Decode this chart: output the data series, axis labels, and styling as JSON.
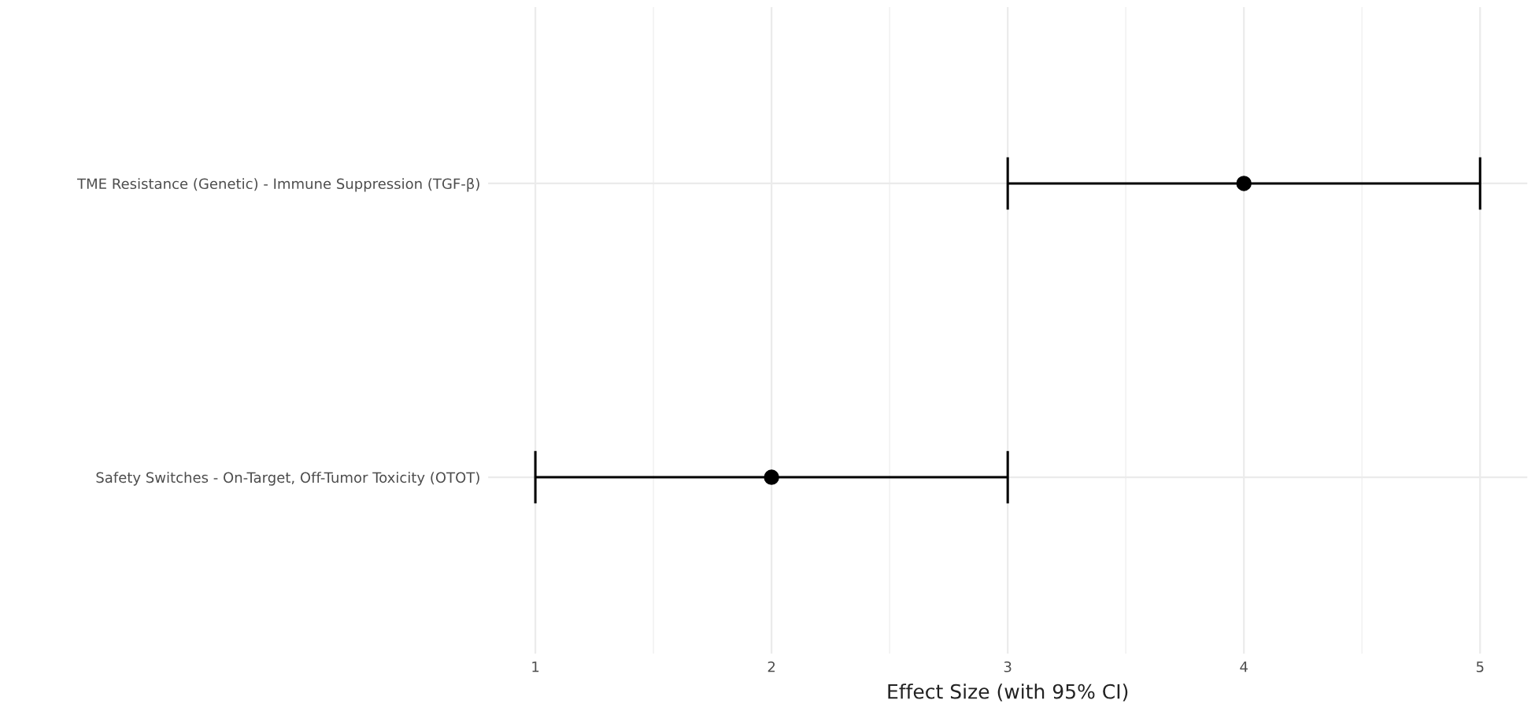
{
  "chart_data": {
    "type": "scatter",
    "orientation": "horizontal",
    "categories": [
      "TME Resistance (Genetic) - Immune Suppression (TGF-β)",
      "Safety Switches - On-Target, Off-Tumor Toxicity (OTOT)"
    ],
    "values": [
      4,
      2
    ],
    "errors": [
      [
        3,
        5
      ],
      [
        1,
        3
      ]
    ],
    "color": "#000000",
    "marker": "circle",
    "xlabel": "Effect Size (with 95% CI)",
    "xlim": [
      0.8,
      5.2
    ],
    "xticks": [
      1,
      2,
      3,
      4,
      5
    ],
    "grid": true,
    "legend": false
  }
}
